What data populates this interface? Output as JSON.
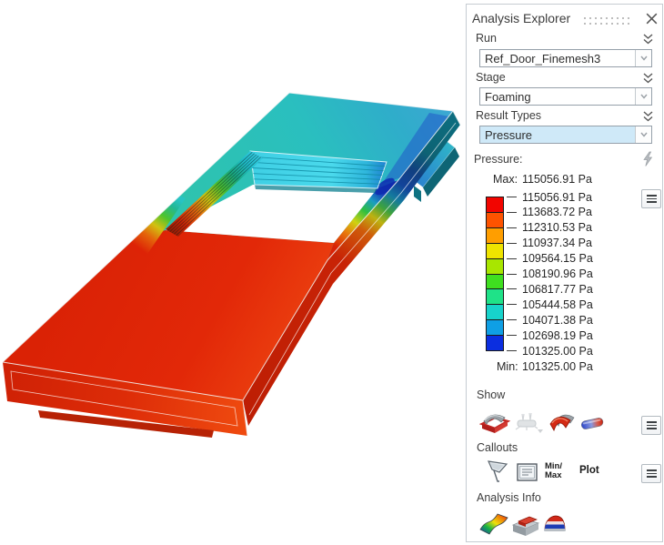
{
  "panel": {
    "title": "Analysis Explorer",
    "run": {
      "label": "Run",
      "value": "Ref_Door_Finemesh3"
    },
    "stage": {
      "label": "Stage",
      "value": "Foaming"
    },
    "result_types": {
      "label": "Result Types",
      "value": "Pressure"
    },
    "legend": {
      "label": "Pressure:",
      "max_label": "Max:",
      "max_value": "115056.91 Pa",
      "min_label": "Min:",
      "min_value": "101325.00 Pa",
      "ticks": [
        "115056.91 Pa",
        "113683.72 Pa",
        "112310.53 Pa",
        "110937.34 Pa",
        "109564.15 Pa",
        "108190.96 Pa",
        "106817.77 Pa",
        "105444.58 Pa",
        "104071.38 Pa",
        "102698.19 Pa",
        "101325.00 Pa"
      ],
      "colors": [
        "#f20500",
        "#fe5300",
        "#ff9e00",
        "#efe400",
        "#a8e600",
        "#3fdf20",
        "#1fe288",
        "#17d3cb",
        "#0f9fe5",
        "#0b2ee0"
      ]
    },
    "show": {
      "label": "Show"
    },
    "callouts": {
      "label": "Callouts",
      "min_max_line1": "Min/",
      "min_max_line2": "Max",
      "plot_label": "Plot"
    },
    "analysis_info": {
      "label": "Analysis Info"
    },
    "accent_colors": {
      "selected_combo_fill": "#cfe9f8",
      "combo_border": "#96a0aa"
    }
  }
}
